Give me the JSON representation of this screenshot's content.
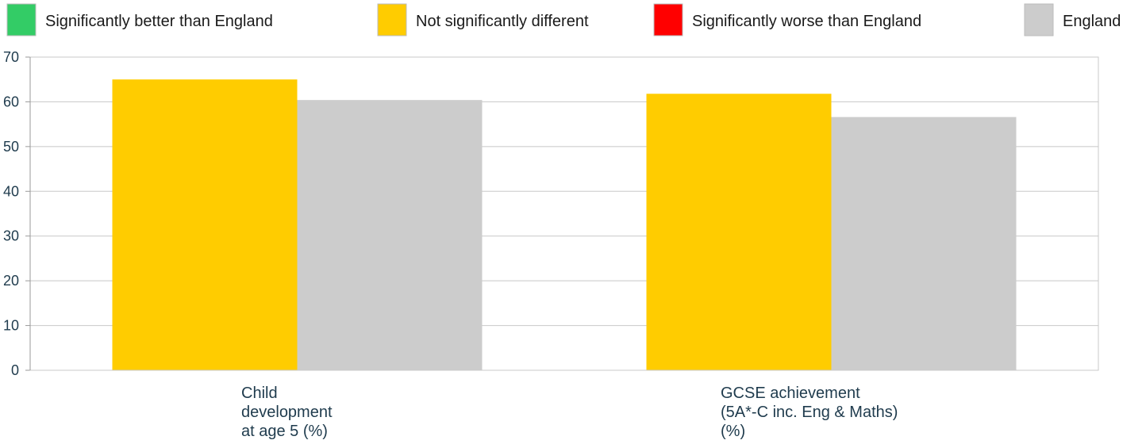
{
  "chart_data": {
    "type": "bar",
    "categories": [
      [
        "Child",
        "development",
        "at age 5 (%)"
      ],
      [
        "GCSE achievement",
        "(5A*-C inc. Eng & Maths)",
        "(%)"
      ]
    ],
    "series": [
      {
        "name": "Not significantly different",
        "color": "#ffcc00",
        "values": [
          65.0,
          61.8
        ]
      },
      {
        "name": "England",
        "color": "#cccccc",
        "values": [
          60.4,
          56.6
        ]
      }
    ],
    "legend": [
      {
        "label": "Significantly better than England",
        "color": "#33cc66"
      },
      {
        "label": "Not significantly different",
        "color": "#ffcc00"
      },
      {
        "label": "Significantly worse than England",
        "color": "#ff0000"
      },
      {
        "label": "England",
        "color": "#cccccc"
      }
    ],
    "yticks": [
      "0",
      "10",
      "20",
      "30",
      "40",
      "50",
      "60",
      "70"
    ],
    "ylim": [
      0,
      70
    ],
    "grid": true,
    "legend_position": "top",
    "title": "",
    "xlabel": "",
    "ylabel": ""
  }
}
